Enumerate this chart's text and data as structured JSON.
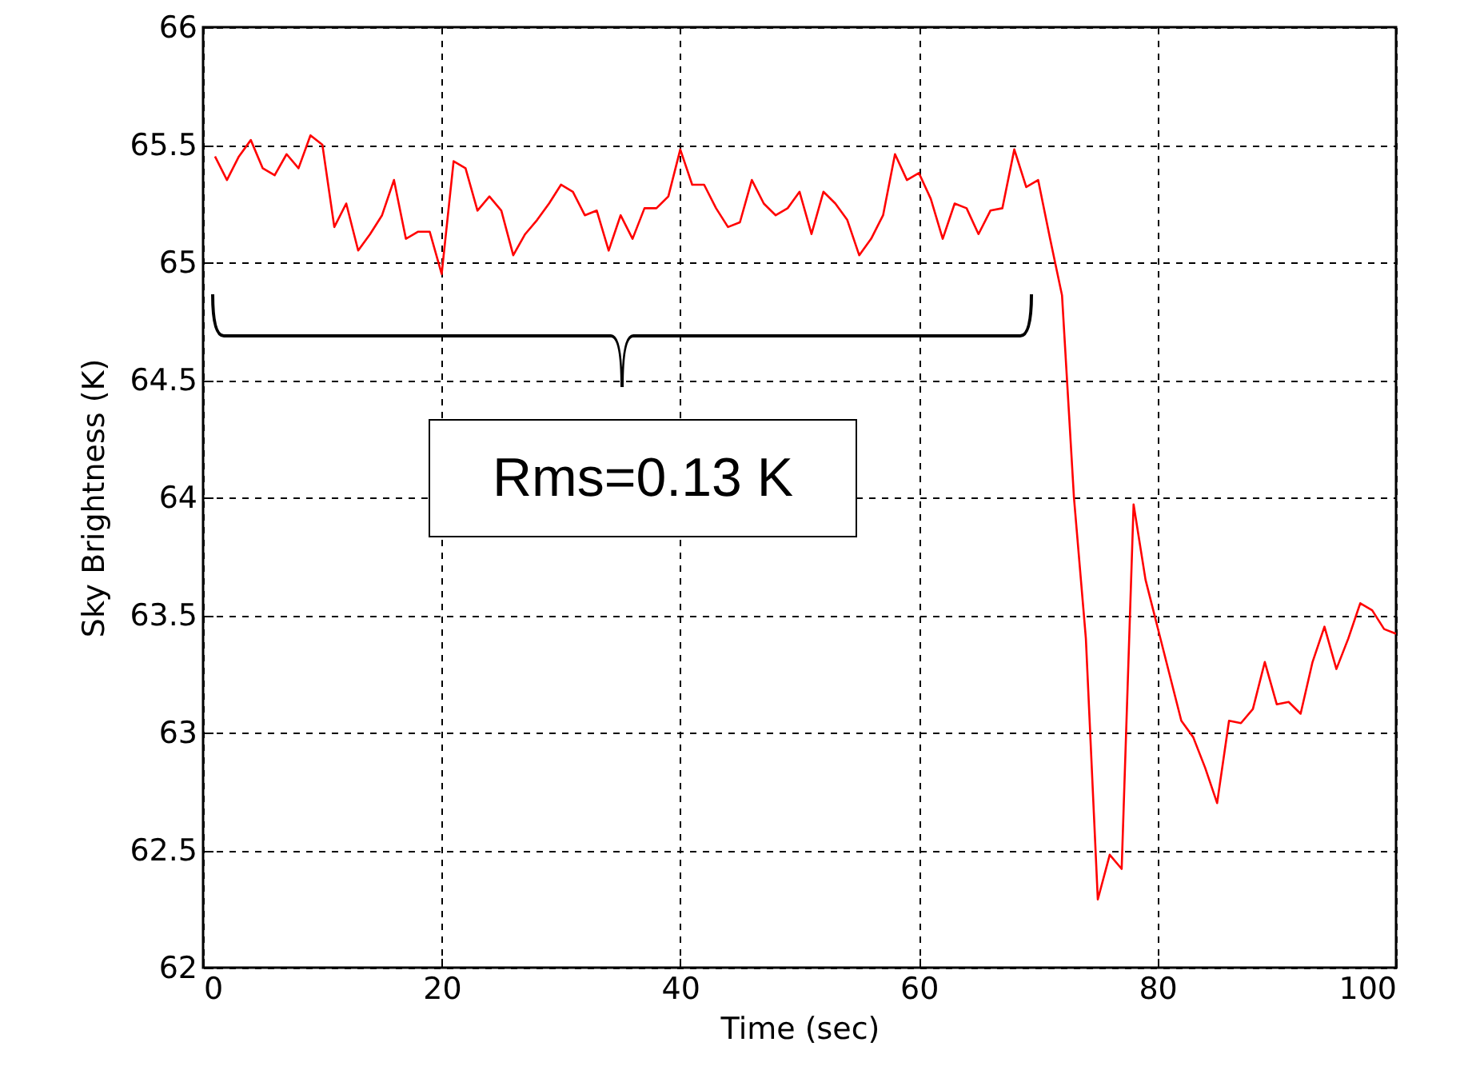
{
  "chart_data": {
    "type": "line",
    "xlabel": "Time (sec)",
    "ylabel": "Sky Brightness (K)",
    "x": [
      1,
      2,
      3,
      4,
      5,
      6,
      7,
      8,
      9,
      10,
      11,
      12,
      13,
      14,
      15,
      16,
      17,
      18,
      19,
      20,
      21,
      22,
      23,
      24,
      25,
      26,
      27,
      28,
      29,
      30,
      31,
      32,
      33,
      34,
      35,
      36,
      37,
      38,
      39,
      40,
      41,
      42,
      43,
      44,
      45,
      46,
      47,
      48,
      49,
      50,
      51,
      52,
      53,
      54,
      55,
      56,
      57,
      58,
      59,
      60,
      61,
      62,
      63,
      64,
      65,
      66,
      67,
      68,
      69,
      70,
      71,
      72,
      73,
      74,
      75,
      76,
      77,
      78,
      79,
      80,
      81,
      82,
      83,
      84,
      85,
      86,
      87,
      88,
      89,
      90,
      91,
      92,
      93,
      94,
      95,
      96,
      97,
      98,
      99,
      100
    ],
    "series": [
      {
        "color": "#ff0000",
        "values": [
          65.45,
          65.35,
          65.45,
          65.52,
          65.4,
          65.37,
          65.46,
          65.4,
          65.54,
          65.5,
          65.15,
          65.25,
          65.05,
          65.12,
          65.2,
          65.35,
          65.1,
          65.13,
          65.13,
          64.95,
          65.43,
          65.4,
          65.22,
          65.28,
          65.22,
          65.03,
          65.12,
          65.18,
          65.25,
          65.33,
          65.3,
          65.2,
          65.22,
          65.05,
          65.2,
          65.1,
          65.23,
          65.23,
          65.28,
          65.48,
          65.33,
          65.33,
          65.23,
          65.15,
          65.17,
          65.35,
          65.25,
          65.2,
          65.23,
          65.3,
          65.12,
          65.3,
          65.25,
          65.18,
          65.03,
          65.1,
          65.2,
          65.46,
          65.35,
          65.38,
          65.27,
          65.1,
          65.25,
          65.23,
          65.12,
          65.22,
          65.23,
          65.48,
          65.32,
          65.35,
          65.1,
          64.86,
          64.0,
          63.4,
          62.29,
          62.48,
          62.42,
          63.97,
          63.65,
          63.45,
          63.25,
          63.05,
          62.98,
          62.85,
          62.7,
          63.05,
          63.04,
          63.1,
          63.3,
          63.12,
          63.13,
          63.08,
          63.3,
          63.45,
          63.27,
          63.4,
          63.55,
          63.52,
          63.44,
          63.42
        ]
      }
    ],
    "xlim": [
      0,
      100
    ],
    "xticks": [
      0,
      20,
      40,
      60,
      80,
      100
    ],
    "ylim": [
      62,
      66
    ],
    "yticks": [
      62,
      62.5,
      63,
      63.5,
      64,
      64.5,
      65,
      65.5,
      66
    ],
    "grid": true,
    "marker": "none",
    "line_style": "solid",
    "annotations": [
      "Rms=0.13 K"
    ]
  }
}
